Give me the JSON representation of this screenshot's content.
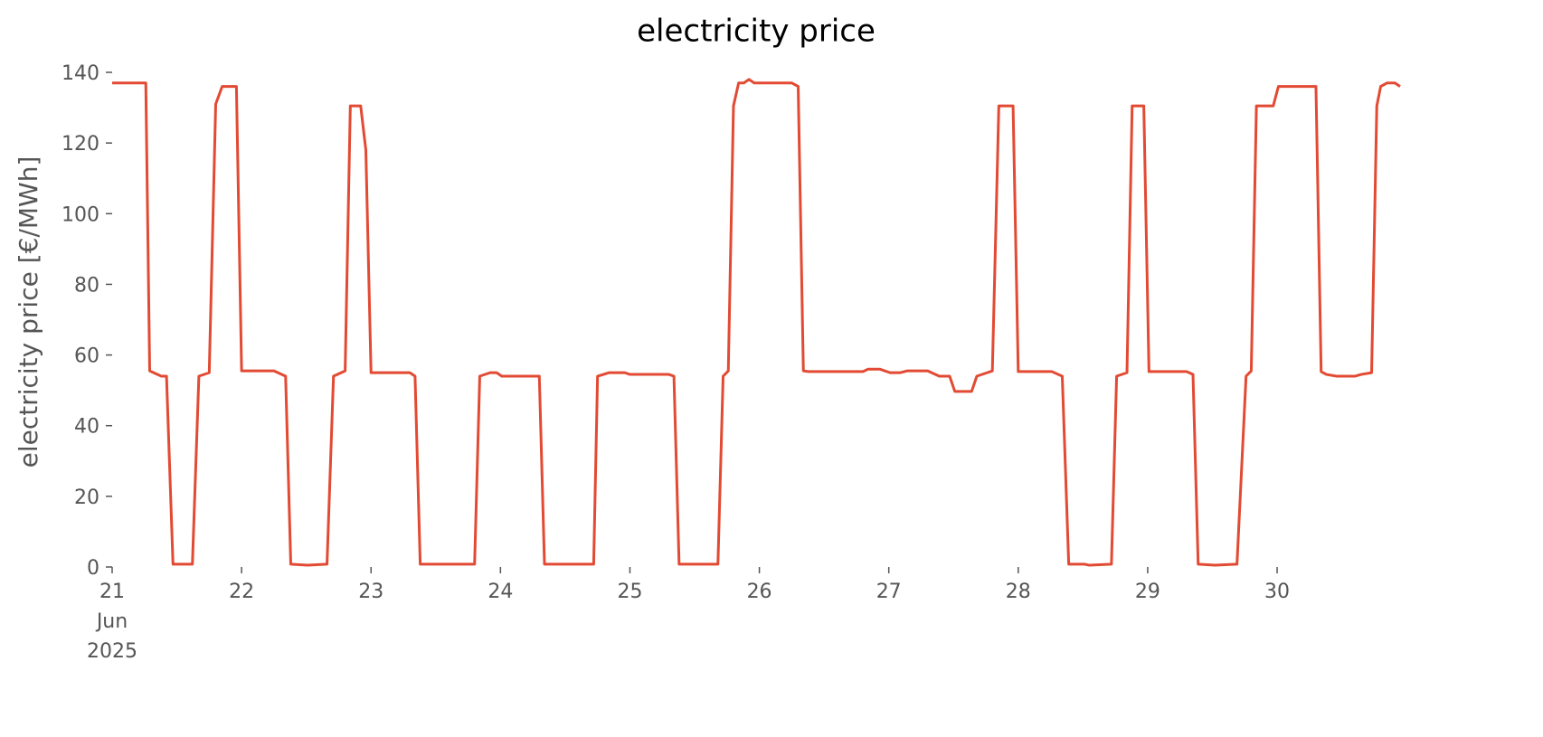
{
  "chart_data": {
    "type": "line",
    "title": "electricity price",
    "ylabel": "electricity price [€/MWh]",
    "color": "#e24a33",
    "x": [
      21,
      21.26,
      21.29,
      21.38,
      21.42,
      21.47,
      21.62,
      21.67,
      21.75,
      21.8,
      21.85,
      21.96,
      22,
      22.25,
      22.34,
      22.38,
      22.51,
      22.66,
      22.71,
      22.8,
      22.84,
      22.92,
      22.96,
      23,
      23.3,
      23.34,
      23.38,
      23.8,
      23.84,
      23.92,
      23.97,
      24.01,
      24.3,
      24.34,
      24.72,
      24.75,
      24.84,
      24.96,
      25,
      25.3,
      25.34,
      25.38,
      25.68,
      25.72,
      25.76,
      25.8,
      25.84,
      25.88,
      25.92,
      25.96,
      26.25,
      26.3,
      26.34,
      26.38,
      26.8,
      26.84,
      26.93,
      27.01,
      27.09,
      27.14,
      27.3,
      27.39,
      27.47,
      27.51,
      27.64,
      27.68,
      27.76,
      27.8,
      27.85,
      27.96,
      28,
      28.26,
      28.34,
      28.39,
      28.51,
      28.55,
      28.72,
      28.76,
      28.84,
      28.88,
      28.97,
      29.01,
      29.3,
      29.35,
      29.39,
      29.52,
      29.69,
      29.76,
      29.8,
      29.84,
      29.97,
      30.01,
      30.3,
      30.34,
      30.38,
      30.46,
      30.6,
      30.65,
      30.73,
      30.77,
      30.8,
      30.85,
      30.91,
      30.95
    ],
    "values": [
      137,
      137,
      55.5,
      54,
      54,
      0.8,
      0.8,
      54,
      55,
      131,
      136,
      136,
      55.5,
      55.5,
      54,
      0.8,
      0.5,
      0.8,
      54,
      55.5,
      130.5,
      130.5,
      118,
      55,
      55,
      54,
      0.8,
      0.8,
      54,
      55,
      55,
      54,
      54,
      0.8,
      0.8,
      54,
      55,
      55,
      54.5,
      54.5,
      54,
      0.8,
      0.8,
      54,
      55.5,
      130.5,
      137,
      137,
      138,
      137,
      137,
      136,
      55.5,
      55.3,
      55.3,
      56,
      56,
      55,
      55,
      55.5,
      55.5,
      54,
      54,
      49.7,
      49.7,
      54,
      55,
      55.5,
      130.5,
      130.5,
      55.3,
      55.3,
      54,
      0.8,
      0.8,
      0.5,
      0.8,
      54,
      55,
      130.5,
      130.5,
      55.3,
      55.3,
      54.5,
      0.8,
      0.5,
      0.8,
      54,
      55.5,
      130.5,
      130.5,
      136,
      136,
      55.3,
      54.5,
      54,
      54,
      54.5,
      55,
      130.5,
      136,
      137,
      137,
      136
    ],
    "xlim": [
      21,
      30.95
    ],
    "ylim": [
      0,
      140
    ],
    "xticks": [
      {
        "value": 21,
        "label": "21\nJun\n2025"
      },
      22,
      23,
      24,
      25,
      26,
      27,
      28,
      29,
      30
    ],
    "yticks": [
      0,
      20,
      40,
      60,
      80,
      100,
      120,
      140
    ]
  }
}
